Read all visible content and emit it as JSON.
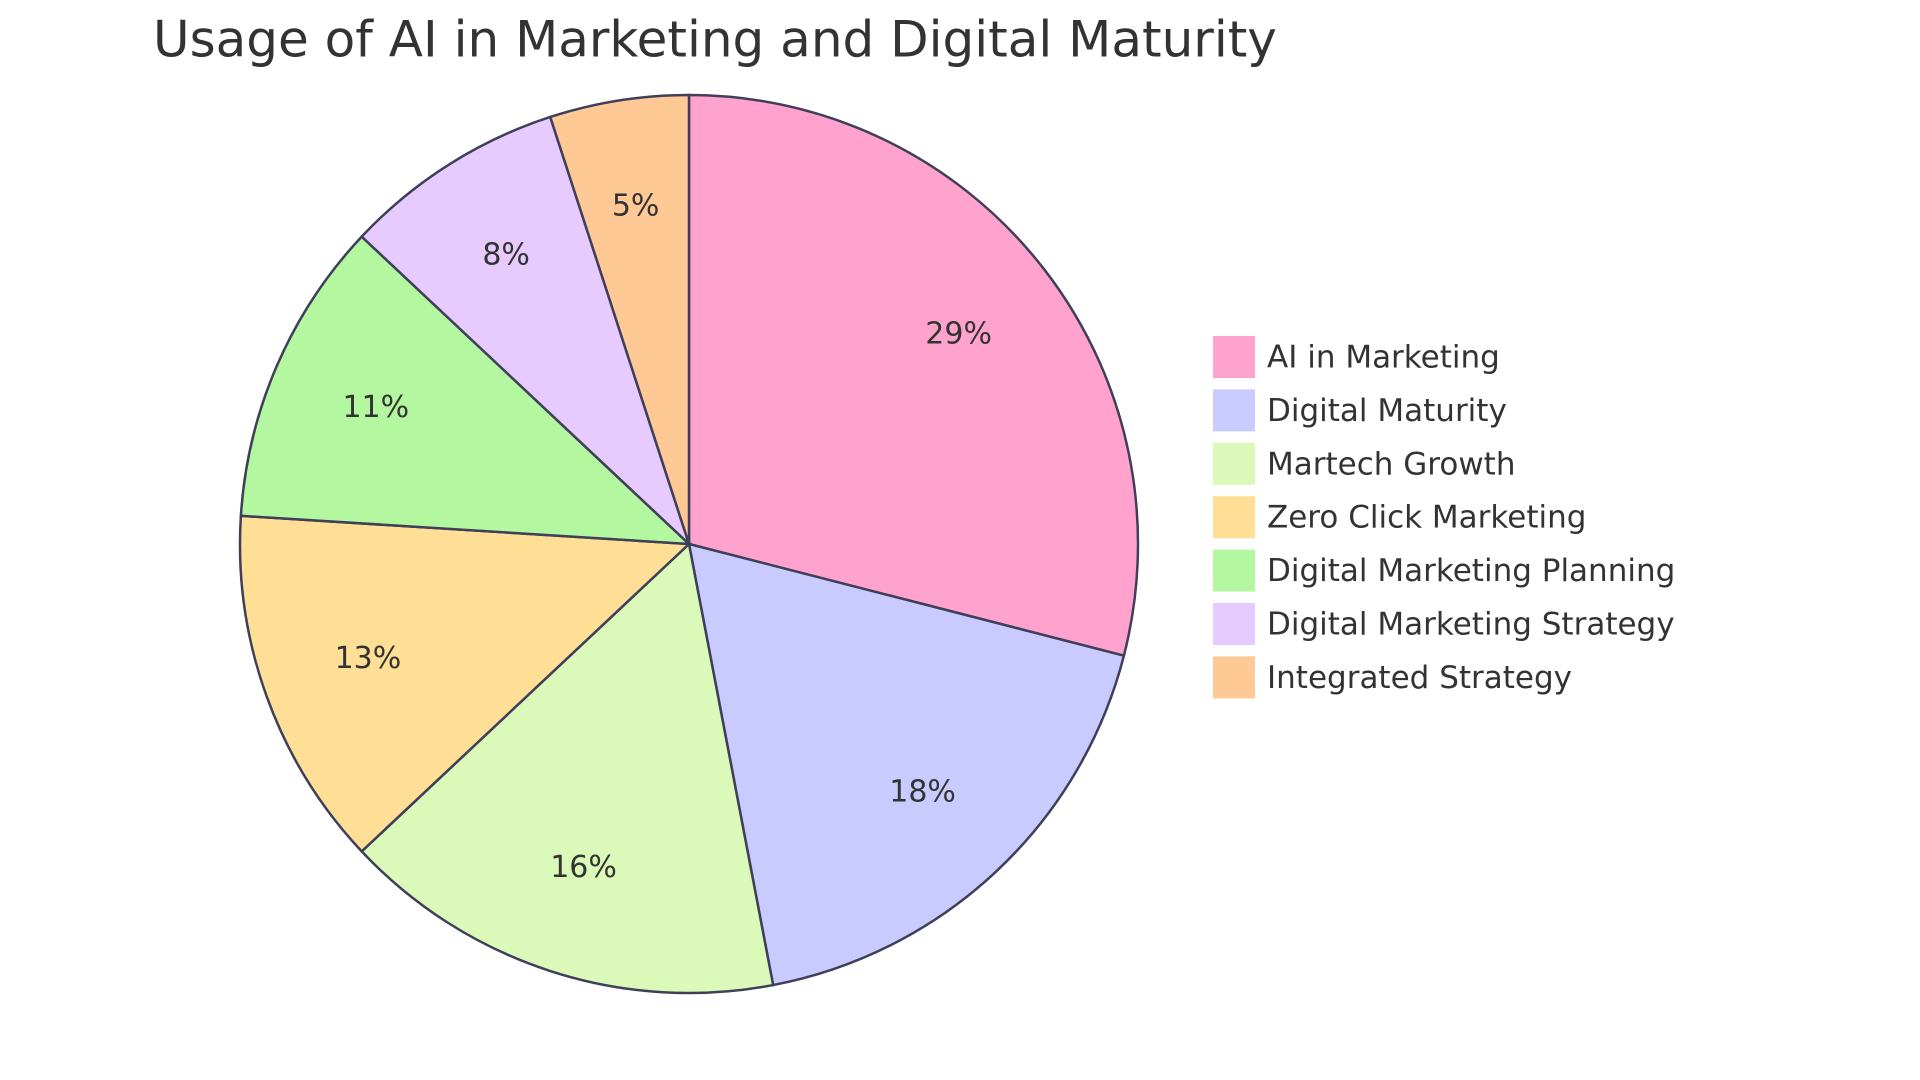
{
  "chart_data": {
    "type": "pie",
    "title": "Usage of AI in Marketing and Digital Maturity",
    "categories": [
      "AI in Marketing",
      "Digital Maturity",
      "Martech Growth",
      "Zero Click Marketing",
      "Digital Marketing Planning",
      "Digital Marketing Strategy",
      "Integrated Strategy"
    ],
    "values": [
      29,
      18,
      16,
      13,
      11,
      8,
      5
    ],
    "value_labels": [
      "29%",
      "18%",
      "16%",
      "13%",
      "11%",
      "8%",
      "5%"
    ],
    "colors": [
      "#ffa3ce",
      "#c9cbff",
      "#dbf9b8",
      "#ffdf95",
      "#b3f8a0",
      "#e7cbff",
      "#ffc995"
    ],
    "legend": "right"
  }
}
